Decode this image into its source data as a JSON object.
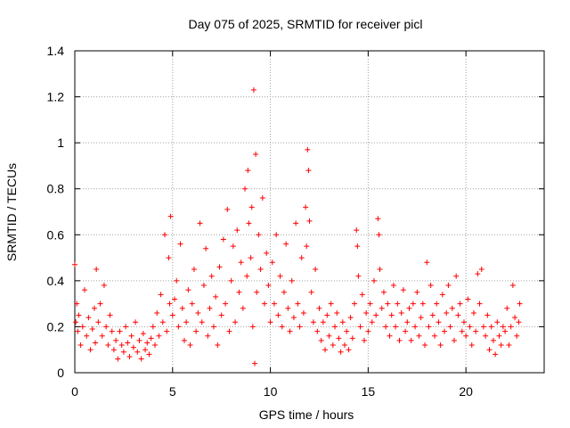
{
  "chart_data": {
    "type": "scatter",
    "title": "Day 075 of 2025, SRMTID for receiver picl",
    "xlabel": "GPS time / hours",
    "ylabel": "SRMTID / TECUs",
    "xlim": [
      0,
      24
    ],
    "ylim": [
      0,
      1.4
    ],
    "xticks": [
      0,
      5,
      10,
      15,
      20
    ],
    "xtick_labels": [
      "0",
      "5",
      "10",
      "15",
      "20"
    ],
    "yticks": [
      0,
      0.2,
      0.4,
      0.6,
      0.8,
      1.0,
      1.2,
      1.4
    ],
    "ytick_labels": [
      "0",
      "0.2",
      "0.4",
      "0.6",
      "0.8",
      "1",
      "1.2",
      "1.4"
    ],
    "grid": true,
    "marker": "+",
    "color": "#ff0000",
    "series": [
      {
        "name": "SRMTID",
        "points": [
          [
            0.0,
            0.47
          ],
          [
            0.05,
            0.22
          ],
          [
            0.1,
            0.3
          ],
          [
            0.15,
            0.18
          ],
          [
            0.2,
            0.25
          ],
          [
            0.3,
            0.12
          ],
          [
            0.4,
            0.2
          ],
          [
            0.5,
            0.36
          ],
          [
            0.6,
            0.16
          ],
          [
            0.7,
            0.24
          ],
          [
            0.8,
            0.1
          ],
          [
            0.9,
            0.19
          ],
          [
            1.0,
            0.28
          ],
          [
            1.05,
            0.13
          ],
          [
            1.1,
            0.45
          ],
          [
            1.2,
            0.22
          ],
          [
            1.3,
            0.3
          ],
          [
            1.4,
            0.16
          ],
          [
            1.5,
            0.38
          ],
          [
            1.6,
            0.2
          ],
          [
            1.7,
            0.12
          ],
          [
            1.8,
            0.25
          ],
          [
            1.9,
            0.18
          ],
          [
            2.0,
            0.1
          ],
          [
            2.1,
            0.14
          ],
          [
            2.2,
            0.06
          ],
          [
            2.3,
            0.18
          ],
          [
            2.4,
            0.12
          ],
          [
            2.5,
            0.09
          ],
          [
            2.6,
            0.2
          ],
          [
            2.7,
            0.13
          ],
          [
            2.8,
            0.07
          ],
          [
            2.9,
            0.16
          ],
          [
            3.0,
            0.11
          ],
          [
            3.1,
            0.22
          ],
          [
            3.2,
            0.09
          ],
          [
            3.3,
            0.14
          ],
          [
            3.4,
            0.06
          ],
          [
            3.5,
            0.17
          ],
          [
            3.6,
            0.1
          ],
          [
            3.7,
            0.13
          ],
          [
            3.8,
            0.08
          ],
          [
            3.9,
            0.15
          ],
          [
            4.0,
            0.2
          ],
          [
            4.1,
            0.12
          ],
          [
            4.2,
            0.26
          ],
          [
            4.3,
            0.16
          ],
          [
            4.4,
            0.34
          ],
          [
            4.5,
            0.22
          ],
          [
            4.6,
            0.6
          ],
          [
            4.7,
            0.18
          ],
          [
            4.8,
            0.5
          ],
          [
            4.85,
            0.3
          ],
          [
            4.9,
            0.68
          ],
          [
            5.0,
            0.25
          ],
          [
            5.1,
            0.32
          ],
          [
            5.2,
            0.4
          ],
          [
            5.3,
            0.2
          ],
          [
            5.4,
            0.56
          ],
          [
            5.5,
            0.28
          ],
          [
            5.6,
            0.14
          ],
          [
            5.7,
            0.22
          ],
          [
            5.8,
            0.36
          ],
          [
            5.9,
            0.12
          ],
          [
            6.0,
            0.3
          ],
          [
            6.1,
            0.45
          ],
          [
            6.2,
            0.18
          ],
          [
            6.3,
            0.26
          ],
          [
            6.4,
            0.65
          ],
          [
            6.5,
            0.22
          ],
          [
            6.6,
            0.38
          ],
          [
            6.7,
            0.54
          ],
          [
            6.8,
            0.16
          ],
          [
            6.9,
            0.28
          ],
          [
            7.0,
            0.42
          ],
          [
            7.1,
            0.2
          ],
          [
            7.2,
            0.33
          ],
          [
            7.3,
            0.12
          ],
          [
            7.4,
            0.46
          ],
          [
            7.5,
            0.25
          ],
          [
            7.6,
            0.58
          ],
          [
            7.7,
            0.3
          ],
          [
            7.8,
            0.71
          ],
          [
            7.9,
            0.18
          ],
          [
            8.0,
            0.4
          ],
          [
            8.1,
            0.55
          ],
          [
            8.2,
            0.22
          ],
          [
            8.3,
            0.62
          ],
          [
            8.4,
            0.35
          ],
          [
            8.5,
            0.48
          ],
          [
            8.6,
            0.28
          ],
          [
            8.7,
            0.8
          ],
          [
            8.8,
            0.42
          ],
          [
            8.85,
            0.88
          ],
          [
            8.9,
            0.65
          ],
          [
            9.0,
            0.5
          ],
          [
            9.05,
            0.72
          ],
          [
            9.1,
            0.2
          ],
          [
            9.15,
            1.23
          ],
          [
            9.2,
            0.04
          ],
          [
            9.25,
            0.95
          ],
          [
            9.3,
            0.35
          ],
          [
            9.4,
            0.6
          ],
          [
            9.5,
            0.45
          ],
          [
            9.6,
            0.76
          ],
          [
            9.7,
            0.3
          ],
          [
            9.8,
            0.52
          ],
          [
            9.9,
            0.38
          ],
          [
            10.0,
            0.22
          ],
          [
            10.1,
            0.48
          ],
          [
            10.2,
            0.3
          ],
          [
            10.3,
            0.6
          ],
          [
            10.4,
            0.25
          ],
          [
            10.5,
            0.42
          ],
          [
            10.6,
            0.2
          ],
          [
            10.7,
            0.35
          ],
          [
            10.8,
            0.56
          ],
          [
            10.9,
            0.28
          ],
          [
            11.0,
            0.18
          ],
          [
            11.1,
            0.4
          ],
          [
            11.2,
            0.24
          ],
          [
            11.3,
            0.65
          ],
          [
            11.4,
            0.3
          ],
          [
            11.5,
            0.2
          ],
          [
            11.6,
            0.5
          ],
          [
            11.7,
            0.26
          ],
          [
            11.8,
            0.72
          ],
          [
            11.85,
            0.55
          ],
          [
            11.9,
            0.97
          ],
          [
            11.95,
            0.88
          ],
          [
            12.0,
            0.66
          ],
          [
            12.1,
            0.35
          ],
          [
            12.2,
            0.22
          ],
          [
            12.3,
            0.45
          ],
          [
            12.4,
            0.18
          ],
          [
            12.5,
            0.28
          ],
          [
            12.6,
            0.14
          ],
          [
            12.7,
            0.22
          ],
          [
            12.8,
            0.1
          ],
          [
            12.9,
            0.25
          ],
          [
            13.0,
            0.16
          ],
          [
            13.1,
            0.3
          ],
          [
            13.2,
            0.12
          ],
          [
            13.3,
            0.2
          ],
          [
            13.4,
            0.26
          ],
          [
            13.5,
            0.15
          ],
          [
            13.6,
            0.09
          ],
          [
            13.7,
            0.22
          ],
          [
            13.8,
            0.12
          ],
          [
            13.9,
            0.18
          ],
          [
            14.0,
            0.1
          ],
          [
            14.1,
            0.24
          ],
          [
            14.2,
            0.15
          ],
          [
            14.3,
            0.3
          ],
          [
            14.4,
            0.62
          ],
          [
            14.45,
            0.55
          ],
          [
            14.5,
            0.42
          ],
          [
            14.6,
            0.2
          ],
          [
            14.7,
            0.34
          ],
          [
            14.8,
            0.14
          ],
          [
            14.9,
            0.26
          ],
          [
            15.0,
            0.18
          ],
          [
            15.1,
            0.3
          ],
          [
            15.2,
            0.22
          ],
          [
            15.3,
            0.4
          ],
          [
            15.4,
            0.25
          ],
          [
            15.5,
            0.67
          ],
          [
            15.55,
            0.6
          ],
          [
            15.6,
            0.45
          ],
          [
            15.7,
            0.28
          ],
          [
            15.8,
            0.35
          ],
          [
            15.9,
            0.2
          ],
          [
            16.0,
            0.3
          ],
          [
            16.1,
            0.16
          ],
          [
            16.2,
            0.25
          ],
          [
            16.3,
            0.38
          ],
          [
            16.4,
            0.2
          ],
          [
            16.5,
            0.3
          ],
          [
            16.6,
            0.14
          ],
          [
            16.7,
            0.26
          ],
          [
            16.8,
            0.36
          ],
          [
            16.9,
            0.18
          ],
          [
            17.0,
            0.22
          ],
          [
            17.1,
            0.28
          ],
          [
            17.2,
            0.14
          ],
          [
            17.3,
            0.3
          ],
          [
            17.4,
            0.2
          ],
          [
            17.5,
            0.35
          ],
          [
            17.6,
            0.16
          ],
          [
            17.7,
            0.24
          ],
          [
            17.8,
            0.3
          ],
          [
            17.9,
            0.12
          ],
          [
            18.0,
            0.48
          ],
          [
            18.1,
            0.2
          ],
          [
            18.2,
            0.38
          ],
          [
            18.3,
            0.25
          ],
          [
            18.4,
            0.16
          ],
          [
            18.5,
            0.3
          ],
          [
            18.6,
            0.22
          ],
          [
            18.7,
            0.12
          ],
          [
            18.8,
            0.34
          ],
          [
            18.9,
            0.18
          ],
          [
            19.0,
            0.26
          ],
          [
            19.1,
            0.38
          ],
          [
            19.2,
            0.2
          ],
          [
            19.3,
            0.28
          ],
          [
            19.4,
            0.14
          ],
          [
            19.5,
            0.42
          ],
          [
            19.6,
            0.25
          ],
          [
            19.7,
            0.3
          ],
          [
            19.8,
            0.18
          ],
          [
            19.9,
            0.22
          ],
          [
            20.0,
            0.16
          ],
          [
            20.1,
            0.32
          ],
          [
            20.2,
            0.2
          ],
          [
            20.3,
            0.12
          ],
          [
            20.4,
            0.26
          ],
          [
            20.5,
            0.18
          ],
          [
            20.6,
            0.43
          ],
          [
            20.7,
            0.3
          ],
          [
            20.8,
            0.45
          ],
          [
            20.9,
            0.2
          ],
          [
            21.0,
            0.16
          ],
          [
            21.1,
            0.25
          ],
          [
            21.2,
            0.1
          ],
          [
            21.3,
            0.2
          ],
          [
            21.4,
            0.14
          ],
          [
            21.5,
            0.08
          ],
          [
            21.6,
            0.22
          ],
          [
            21.7,
            0.16
          ],
          [
            21.8,
            0.12
          ],
          [
            21.9,
            0.2
          ],
          [
            22.0,
            0.18
          ],
          [
            22.1,
            0.28
          ],
          [
            22.2,
            0.12
          ],
          [
            22.3,
            0.2
          ],
          [
            22.4,
            0.38
          ],
          [
            22.5,
            0.24
          ],
          [
            22.6,
            0.16
          ],
          [
            22.7,
            0.22
          ],
          [
            22.75,
            0.3
          ]
        ]
      }
    ]
  }
}
